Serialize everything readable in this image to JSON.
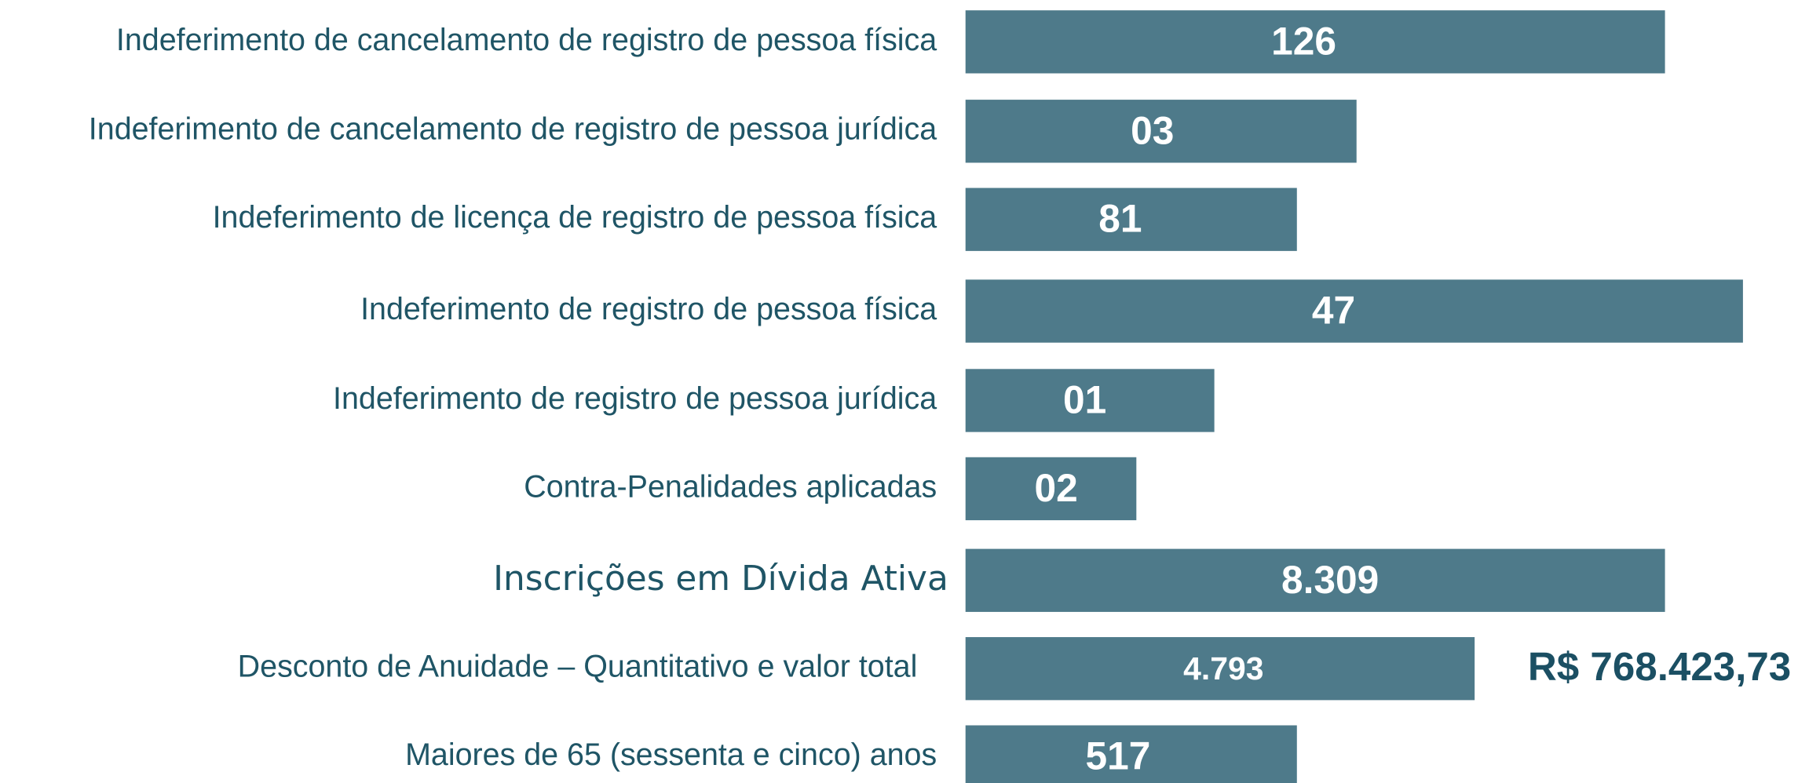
{
  "rows": [
    {
      "label": "Indeferimento de cancelamento de registro de pessoa física",
      "value": "126"
    },
    {
      "label": "Indeferimento de cancelamento de registro de pessoa jurídica",
      "value": "03"
    },
    {
      "label": "Indeferimento de licença de registro de pessoa física",
      "value": "81"
    },
    {
      "label": "Indeferimento de registro de pessoa física",
      "value": "47"
    },
    {
      "label": "Indeferimento de registro de pessoa jurídica",
      "value": "01"
    },
    {
      "label": "Contra-Penalidades aplicadas",
      "value": "02"
    },
    {
      "label": "Inscrições em Dívida Ativa",
      "value": "8.309"
    },
    {
      "label": "Desconto de Anuidade – Quantitativo e valor total",
      "value": "4.793",
      "total": "R$ 768.423,73"
    },
    {
      "label": "Maiores de 65 (sessenta e cinco) anos",
      "value": "517"
    }
  ]
}
